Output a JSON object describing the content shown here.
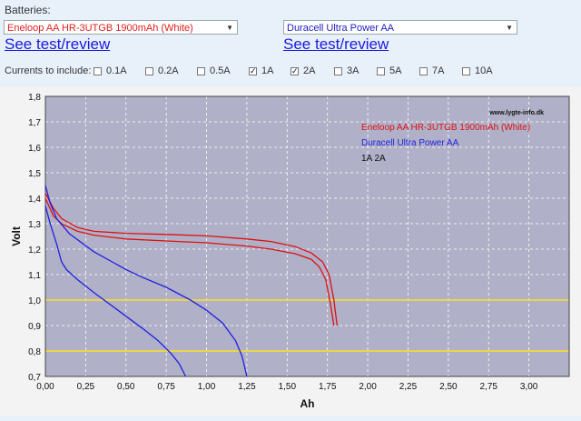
{
  "header": {
    "batteries_label": "Batteries:",
    "left_select": {
      "value": "Eneloop AA HR-3UTGB 1900mAh (White)",
      "color": "#e02020"
    },
    "right_select": {
      "value": "Duracell Ultra Power AA",
      "color": "#2020c0"
    },
    "left_link": "See test/review",
    "right_link": "See test/review"
  },
  "currents": {
    "label": "Currents to include:",
    "options": [
      {
        "label": "0.1A",
        "checked": false
      },
      {
        "label": "0.2A",
        "checked": false
      },
      {
        "label": "0.5A",
        "checked": false
      },
      {
        "label": "1A",
        "checked": true
      },
      {
        "label": "2A",
        "checked": true
      },
      {
        "label": "3A",
        "checked": false
      },
      {
        "label": "5A",
        "checked": false
      },
      {
        "label": "7A",
        "checked": false
      },
      {
        "label": "10A",
        "checked": false
      }
    ]
  },
  "chart_data": {
    "type": "line",
    "watermark": "www.lygte-info.dk",
    "xlabel": "Ah",
    "ylabel": "Volt",
    "xlim": [
      0,
      3.25
    ],
    "ylim": [
      0.7,
      1.8
    ],
    "xticks": [
      "0,00",
      "0,25",
      "0,50",
      "0,75",
      "1,00",
      "1,25",
      "1,50",
      "1,75",
      "2,00",
      "2,25",
      "2,50",
      "2,75",
      "3,00"
    ],
    "yticks": [
      "0,7",
      "0,8",
      "0,9",
      "1,0",
      "1,1",
      "1,2",
      "1,3",
      "1,4",
      "1,5",
      "1,6",
      "1,7",
      "1,8"
    ],
    "grid": true,
    "reference_lines": [
      1.0,
      0.8
    ],
    "legend": {
      "entries": [
        "Eneloop AA HR-3UTGB 1900mAh (White)",
        "Duracell Ultra Power AA"
      ],
      "currents_text": "1A   2A",
      "placement": "top-right"
    },
    "colors": {
      "eneloop": "#dd1010",
      "duracell": "#2020e0",
      "plot_bg": "#b0b0c8",
      "ref_line": "#ffe020"
    },
    "series": [
      {
        "battery": "Eneloop",
        "current": "1A",
        "points": [
          [
            0,
            1.42
          ],
          [
            0.05,
            1.36
          ],
          [
            0.1,
            1.32
          ],
          [
            0.2,
            1.285
          ],
          [
            0.3,
            1.27
          ],
          [
            0.5,
            1.262
          ],
          [
            0.75,
            1.258
          ],
          [
            1.0,
            1.252
          ],
          [
            1.25,
            1.24
          ],
          [
            1.4,
            1.23
          ],
          [
            1.55,
            1.21
          ],
          [
            1.65,
            1.185
          ],
          [
            1.72,
            1.15
          ],
          [
            1.76,
            1.1
          ],
          [
            1.79,
            1.0
          ],
          [
            1.81,
            0.9
          ]
        ]
      },
      {
        "battery": "Eneloop",
        "current": "2A",
        "points": [
          [
            0,
            1.4
          ],
          [
            0.05,
            1.33
          ],
          [
            0.1,
            1.3
          ],
          [
            0.2,
            1.27
          ],
          [
            0.3,
            1.255
          ],
          [
            0.5,
            1.24
          ],
          [
            0.75,
            1.232
          ],
          [
            1.0,
            1.225
          ],
          [
            1.25,
            1.212
          ],
          [
            1.4,
            1.2
          ],
          [
            1.55,
            1.182
          ],
          [
            1.65,
            1.16
          ],
          [
            1.7,
            1.13
          ],
          [
            1.74,
            1.08
          ],
          [
            1.77,
            0.98
          ],
          [
            1.79,
            0.9
          ]
        ]
      },
      {
        "battery": "Duracell",
        "current": "1A",
        "points": [
          [
            0,
            1.45
          ],
          [
            0.03,
            1.38
          ],
          [
            0.07,
            1.32
          ],
          [
            0.15,
            1.26
          ],
          [
            0.3,
            1.19
          ],
          [
            0.5,
            1.12
          ],
          [
            0.6,
            1.09
          ],
          [
            0.75,
            1.05
          ],
          [
            0.9,
            1.0
          ],
          [
            1.0,
            0.96
          ],
          [
            1.1,
            0.91
          ],
          [
            1.18,
            0.84
          ],
          [
            1.22,
            0.78
          ],
          [
            1.25,
            0.7
          ]
        ]
      },
      {
        "battery": "Duracell",
        "current": "2A",
        "points": [
          [
            0,
            1.37
          ],
          [
            0.03,
            1.3
          ],
          [
            0.07,
            1.22
          ],
          [
            0.1,
            1.15
          ],
          [
            0.13,
            1.12
          ],
          [
            0.2,
            1.08
          ],
          [
            0.3,
            1.03
          ],
          [
            0.45,
            0.96
          ],
          [
            0.6,
            0.89
          ],
          [
            0.7,
            0.84
          ],
          [
            0.78,
            0.79
          ],
          [
            0.83,
            0.75
          ],
          [
            0.87,
            0.7
          ]
        ]
      }
    ]
  }
}
